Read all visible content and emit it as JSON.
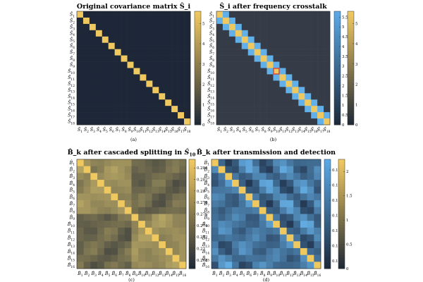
{
  "chart_data": [
    {
      "type": "heatmap",
      "title": "Original covariance matrix Ŝ_i",
      "caption": "(a)",
      "row_labels": [
        "Ŝ_1",
        "Ŝ_2",
        "Ŝ_3",
        "Ŝ_4",
        "Ŝ_5",
        "Ŝ_6",
        "Ŝ_7",
        "Ŝ_8",
        "Ŝ_9",
        "Ŝ_10",
        "Ŝ_11",
        "Ŝ_12",
        "Ŝ_13",
        "Ŝ_14",
        "Ŝ_15",
        "Ŝ_16",
        "Ŝ_17",
        "Ŝ_18"
      ],
      "col_labels": [
        "Ŝ_1",
        "Ŝ_2",
        "Ŝ_3",
        "Ŝ_4",
        "Ŝ_5",
        "Ŝ_6",
        "Ŝ_7",
        "Ŝ_8",
        "Ŝ_9",
        "Ŝ_10",
        "Ŝ_11",
        "Ŝ_12",
        "Ŝ_13",
        "Ŝ_14",
        "Ŝ_15",
        "Ŝ_16",
        "Ŝ_17",
        "Ŝ_18"
      ],
      "diagonal": 5.5,
      "off_diagonal": 0,
      "colorbars": [
        {
          "ticks": [
            0,
            1,
            2,
            3,
            4,
            5
          ],
          "range": [
            0,
            5.6
          ],
          "colors": [
            "#1b2636",
            "#f0c860"
          ]
        }
      ]
    },
    {
      "type": "heatmap",
      "title": "Ŝ_i after frequency crosstalk",
      "caption": "(b)",
      "row_labels": [
        "Ŝ_1",
        "Ŝ_2",
        "Ŝ_3",
        "Ŝ_4",
        "Ŝ_5",
        "Ŝ_6",
        "Ŝ_7",
        "Ŝ_8",
        "Ŝ_9",
        "Ŝ_10",
        "Ŝ_11",
        "Ŝ_12",
        "Ŝ_13",
        "Ŝ_14",
        "Ŝ_15",
        "Ŝ_16",
        "Ŝ_17",
        "Ŝ_18"
      ],
      "col_labels": [
        "Ŝ_1",
        "Ŝ_2",
        "Ŝ_3",
        "Ŝ_4",
        "Ŝ_5",
        "Ŝ_6",
        "Ŝ_7",
        "Ŝ_8",
        "Ŝ_9",
        "Ŝ_10",
        "Ŝ_11",
        "Ŝ_12",
        "Ŝ_13",
        "Ŝ_14",
        "Ŝ_15",
        "Ŝ_16",
        "Ŝ_17",
        "Ŝ_18"
      ],
      "diagonal": 5.5,
      "near_diagonal": 1.5,
      "off_diagonal": 0,
      "highlight_cell": [
        9,
        9
      ],
      "colorbars": [
        {
          "ticks": [
            0,
            0.5,
            1,
            1.5,
            2,
            2.5,
            3,
            3.5,
            4,
            4.5,
            5,
            5.5
          ],
          "range": [
            0,
            5.8
          ],
          "colors": [
            "#1b2636",
            "#5aa8e6"
          ]
        },
        {
          "ticks": [
            0,
            1,
            2,
            3,
            4,
            5
          ],
          "range": [
            0,
            5.6
          ],
          "colors": [
            "#1b2636",
            "#f0c860"
          ]
        }
      ]
    },
    {
      "type": "heatmap",
      "title": "B̂_k after cascaded splitting in Ŝ_10",
      "caption": "(c)",
      "row_labels": [
        "B̂_1",
        "B̂_2",
        "B̂_3",
        "B̂_4",
        "B̂_5",
        "B̂_6",
        "B̂_7",
        "B̂_8",
        "B̂_9",
        "B̂_10",
        "B̂_11",
        "B̂_12",
        "B̂_13",
        "B̂_14",
        "B̂_15",
        "B̂_16"
      ],
      "col_labels": [
        "B̂_1",
        "B̂_2",
        "B̂_3",
        "B̂_4",
        "B̂_5",
        "B̂_6",
        "B̂_7",
        "B̂_8",
        "B̂_9",
        "B̂_10",
        "B̂_11",
        "B̂_12",
        "B̂_13",
        "B̂_14",
        "B̂_15",
        "B̂_16"
      ],
      "diagonal": 0.2855,
      "colorbars": [
        {
          "ticks": [
            0.268,
            0.27,
            0.272,
            0.274,
            0.276,
            0.278,
            0.28,
            0.282,
            0.284
          ],
          "range": [
            0.2665,
            0.2855
          ],
          "colors": [
            "#1b2636",
            "#f0c860"
          ]
        }
      ]
    },
    {
      "type": "heatmap",
      "title": "B̂_k after transmission and detection",
      "caption": "(d)",
      "row_labels": [
        "B̂_1",
        "B̂_2",
        "B̂_3",
        "B̂_4",
        "B̂_5",
        "B̂_6",
        "B̂_7",
        "B̂_8",
        "B̂_9",
        "B̂_10",
        "B̂_11",
        "B̂_12",
        "B̂_13",
        "B̂_14",
        "B̂_15",
        "B̂_16"
      ],
      "col_labels": [
        "B̂_1",
        "B̂_2",
        "B̂_3",
        "B̂_4",
        "B̂_5",
        "B̂_6",
        "B̂_7",
        "B̂_8",
        "B̂_9",
        "B̂_10",
        "B̂_11",
        "B̂_12",
        "B̂_13",
        "B̂_14",
        "B̂_15",
        "B̂_16"
      ],
      "diagonal": 2.2,
      "colorbars": [
        {
          "ticks": [
            0.123,
            0.124,
            0.125,
            0.126,
            0.127,
            0.128,
            0.129
          ],
          "range": [
            0.1225,
            0.1297
          ],
          "colors": [
            "#1b2636",
            "#5aa8e6"
          ]
        },
        {
          "ticks": [
            0,
            0.5,
            1,
            1.5,
            2
          ],
          "range": [
            0,
            2.25
          ],
          "colors": [
            "#1b2636",
            "#f0c860"
          ]
        }
      ]
    }
  ]
}
